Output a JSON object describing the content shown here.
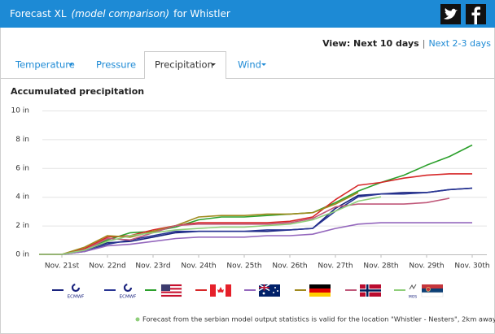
{
  "header": {
    "title": "Forecast XL",
    "subtitle": "(model comparison)",
    "location": "for Whistler"
  },
  "view": {
    "label": "View: Next 10 days",
    "separator": "|",
    "link": "Next 2-3 days"
  },
  "tabs": [
    "Temperature",
    "Pressure",
    "Precipitation",
    "Wind"
  ],
  "chart_data": {
    "type": "line",
    "title": "Accumulated precipitation",
    "x": [
      0,
      0.5,
      1,
      1.5,
      2,
      2.5,
      3,
      3.5,
      4,
      4.5,
      5,
      5.5,
      6,
      6.5,
      7,
      7.5,
      8,
      8.5,
      9,
      9.5
    ],
    "xlim": [
      0,
      9.8
    ],
    "xticks": [
      {
        "value": 0.5,
        "label": "Nov. 21st"
      },
      {
        "value": 1.5,
        "label": "Nov. 22nd"
      },
      {
        "value": 2.5,
        "label": "Nov. 23rd"
      },
      {
        "value": 3.5,
        "label": "Nov. 24th"
      },
      {
        "value": 4.5,
        "label": "Nov. 25th"
      },
      {
        "value": 5.5,
        "label": "Nov. 26th"
      },
      {
        "value": 6.5,
        "label": "Nov. 27th"
      },
      {
        "value": 7.5,
        "label": "Nov. 28th"
      },
      {
        "value": 8.5,
        "label": "Nov. 29th"
      },
      {
        "value": 9.5,
        "label": "Nov. 30th"
      }
    ],
    "ylim": [
      0,
      10
    ],
    "yticks": [
      {
        "value": 0,
        "label": "0 in"
      },
      {
        "value": 2,
        "label": "2 in"
      },
      {
        "value": 4,
        "label": "4 in"
      },
      {
        "value": 6,
        "label": "6 in"
      },
      {
        "value": 8,
        "label": "8 in"
      },
      {
        "value": 10,
        "label": "10 in"
      }
    ],
    "grid": true,
    "series": [
      {
        "name": "ECMWF",
        "color": "#1a237e",
        "values": [
          0,
          0,
          0.3,
          0.8,
          0.9,
          1.2,
          1.5,
          1.6,
          1.6,
          1.6,
          1.6,
          1.7,
          1.8,
          3.2,
          4.1,
          4.2,
          4.3,
          4.3,
          4.5,
          4.6
        ]
      },
      {
        "name": "ECMWF",
        "color": "#283593",
        "values": [
          0,
          0,
          0.2,
          0.7,
          1.0,
          1.3,
          1.6,
          1.6,
          1.6,
          1.6,
          1.7,
          1.7,
          1.8,
          3.0,
          4.0,
          4.2,
          4.2,
          4.3,
          4.5,
          4.6
        ]
      },
      {
        "color": "#2ca02c",
        "values": [
          0,
          0,
          0.3,
          1.0,
          1.5,
          1.6,
          1.9,
          2.4,
          2.6,
          2.6,
          2.7,
          2.8,
          2.9,
          3.6,
          4.4,
          5.0,
          5.5,
          6.2,
          6.8,
          7.6
        ]
      },
      {
        "color": "#d62728",
        "values": [
          0,
          0,
          0.4,
          1.2,
          1.3,
          1.7,
          2.0,
          2.2,
          2.2,
          2.2,
          2.2,
          2.3,
          2.6,
          3.8,
          4.8,
          5.0,
          5.3,
          5.5,
          5.6,
          5.6
        ]
      },
      {
        "color": "#9467bd",
        "values": [
          0,
          0,
          0.2,
          0.6,
          0.7,
          0.9,
          1.1,
          1.2,
          1.2,
          1.2,
          1.3,
          1.3,
          1.4,
          1.8,
          2.1,
          2.2,
          2.2,
          2.2,
          2.2,
          2.2
        ]
      },
      {
        "color": "#a08a1e",
        "values": [
          0,
          0,
          0.5,
          1.3,
          1.2,
          1.6,
          2.0,
          2.6,
          2.7,
          2.7,
          2.8,
          2.8,
          2.9,
          3.5,
          4.3,
          null,
          null,
          null,
          null,
          null
        ]
      },
      {
        "color": "#c0587a",
        "values": [
          0,
          0,
          0.3,
          1.1,
          1.0,
          1.5,
          2.0,
          2.1,
          2.1,
          2.1,
          2.1,
          2.2,
          2.5,
          3.3,
          3.5,
          3.5,
          3.5,
          3.6,
          3.9,
          null
        ]
      },
      {
        "name": "MOS",
        "color": "#8fce7a",
        "values": [
          0,
          0,
          0.3,
          0.9,
          1.3,
          1.5,
          1.7,
          1.8,
          1.9,
          1.9,
          2.0,
          2.1,
          2.4,
          3.0,
          3.7,
          4.0,
          null,
          null,
          null,
          null
        ]
      }
    ]
  },
  "footnote": "Forecast from the serbian model output statistics is valid for the location \"Whistler - Nesters\", 2km away."
}
